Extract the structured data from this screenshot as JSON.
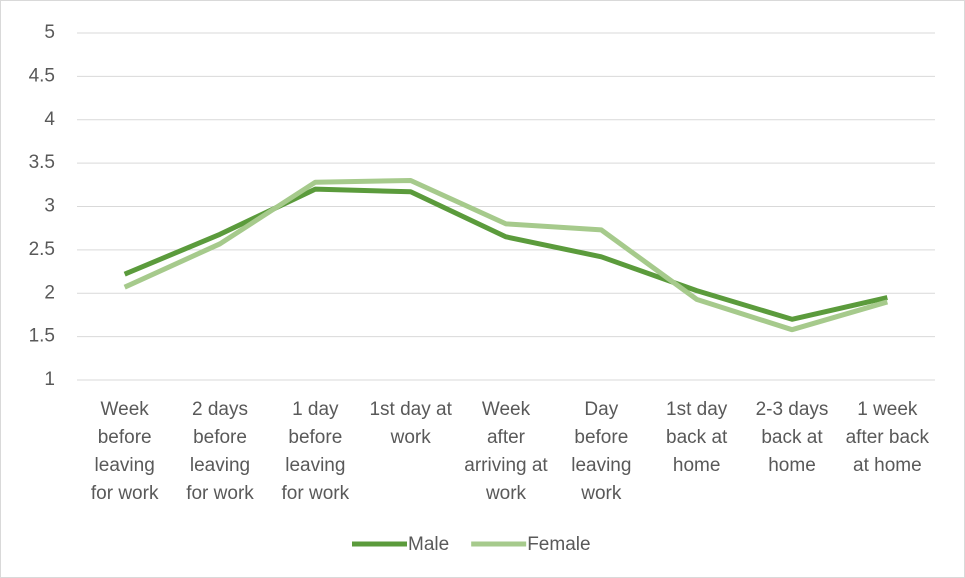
{
  "chart_data": {
    "type": "line",
    "categories": [
      "Week before leaving for work",
      "2 days before leaving for work",
      "1 day before leaving for work",
      "1st day at work",
      "Week after arriving at work",
      "Day before leaving work",
      "1st day back at home",
      "2-3 days back at home",
      "1 week after back at home"
    ],
    "series": [
      {
        "name": "Male",
        "color": "#5b9b3c",
        "values": [
          2.22,
          2.68,
          3.2,
          3.17,
          2.65,
          2.42,
          2.03,
          1.7,
          1.95
        ]
      },
      {
        "name": "Female",
        "color": "#a6ca8c",
        "values": [
          2.07,
          2.57,
          3.28,
          3.3,
          2.8,
          2.73,
          1.93,
          1.58,
          1.9
        ]
      }
    ],
    "ylim": [
      1,
      5
    ],
    "yticks": [
      1,
      1.5,
      2,
      2.5,
      3,
      3.5,
      4,
      4.5,
      5
    ],
    "grid": true,
    "legend": "bottom"
  }
}
